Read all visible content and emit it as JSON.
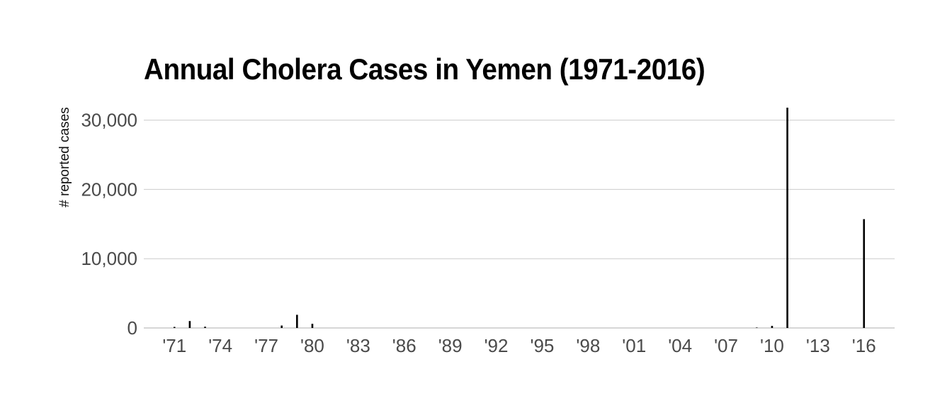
{
  "chart_data": {
    "type": "bar",
    "title": "Annual Cholera Cases in Yemen (1971-2016)",
    "xlabel": "",
    "ylabel": "# reported cases",
    "xlim": [
      1969,
      2018
    ],
    "ylim": [
      0,
      32000
    ],
    "yticks": [
      0,
      10000,
      20000,
      30000
    ],
    "ytick_labels": [
      "0",
      "10,000",
      "20,000",
      "30,000"
    ],
    "xticks": [
      1971,
      1974,
      1977,
      1980,
      1983,
      1986,
      1989,
      1992,
      1995,
      1998,
      2001,
      2004,
      2007,
      2010,
      2013,
      2016
    ],
    "xtick_labels": [
      "'71",
      "'74",
      "'77",
      "'80",
      "'83",
      "'86",
      "'89",
      "'92",
      "'95",
      "'98",
      "'01",
      "'04",
      "'07",
      "'10",
      "'13",
      "'16"
    ],
    "grid": "horizontal",
    "color": "#000000",
    "x": [
      1971,
      1972,
      1973,
      1978,
      1979,
      1980,
      2009,
      2010,
      2011,
      2016
    ],
    "values": [
      150,
      1000,
      180,
      350,
      1900,
      600,
      60,
      300,
      31800,
      15700
    ]
  }
}
